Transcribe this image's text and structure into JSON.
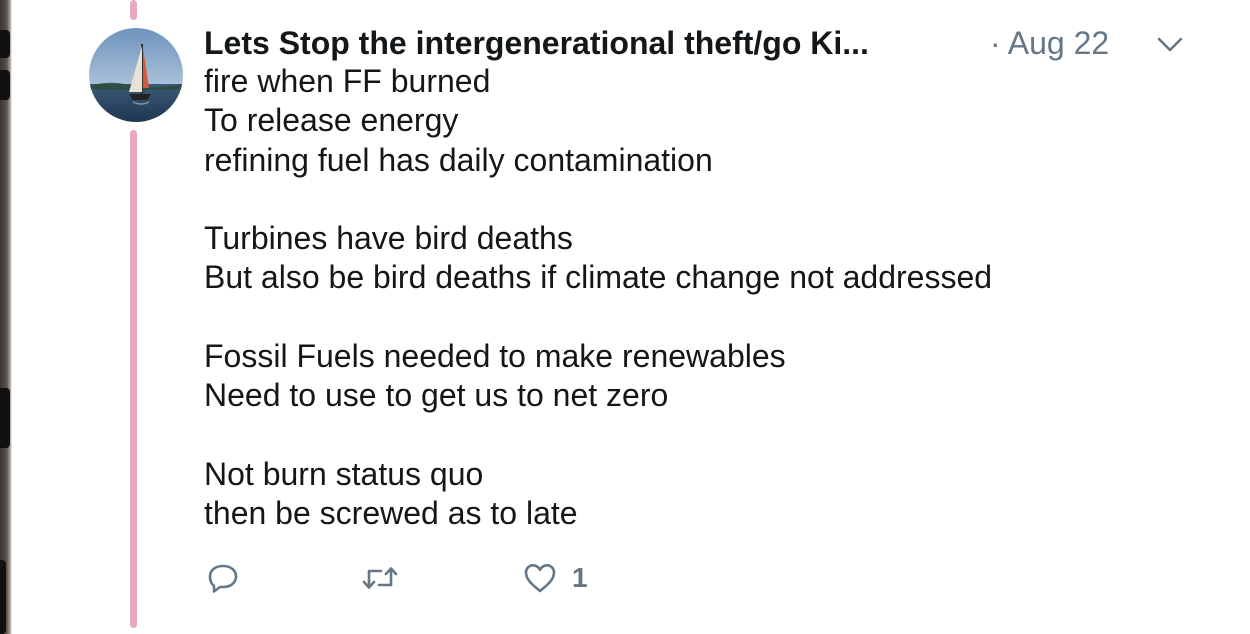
{
  "tweet": {
    "author_name": "Lets Stop the intergenerational theft/go Ki...",
    "time": "· Aug 22",
    "body_lines": [
      "fire when FF burned",
      "To release energy",
      "refining fuel has daily contamination",
      "",
      "Turbines have bird deaths",
      "But also be bird deaths if climate change not addressed",
      "",
      "Fossil Fuels needed to make renewables",
      "Need to use to get us to net zero",
      "",
      "Not burn status quo",
      "then be screwed as to late"
    ],
    "like_count": "1"
  },
  "icons": {
    "reply": "reply-icon",
    "retweet": "retweet-icon",
    "like": "heart-icon",
    "menu": "chevron-down-icon",
    "avatar": "sailboat-avatar"
  },
  "colors": {
    "thread_line": "#e8a9ba",
    "secondary_text": "#657786",
    "primary_text": "#14171a"
  }
}
